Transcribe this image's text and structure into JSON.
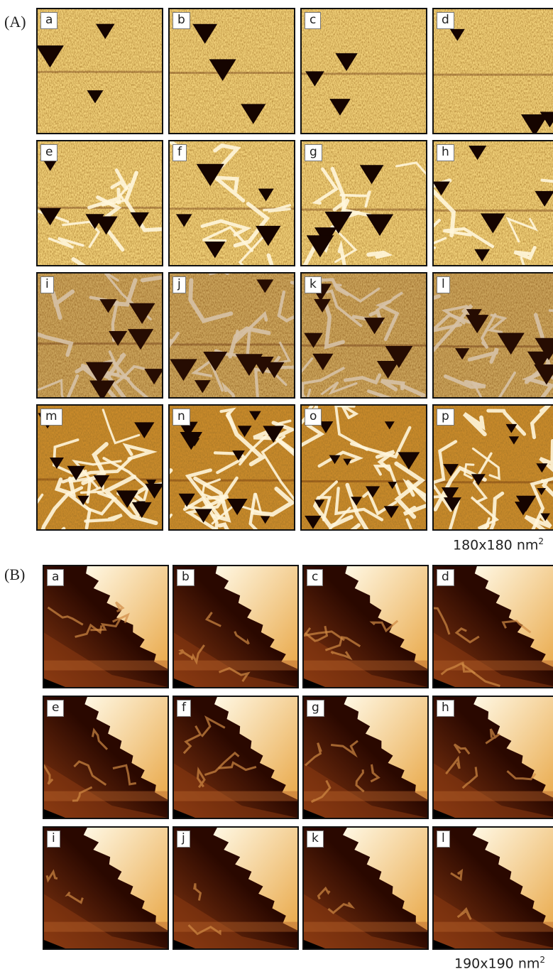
{
  "sectionA": {
    "label": "(A)",
    "panels": [
      "a",
      "b",
      "c",
      "d",
      "e",
      "f",
      "g",
      "h",
      "i",
      "j",
      "k",
      "l",
      "m",
      "n",
      "o",
      "p"
    ],
    "scale_text": "180x180 nm",
    "scale_sup": "2"
  },
  "sectionB": {
    "label": "(B)",
    "panels": [
      "a",
      "b",
      "c",
      "d",
      "e",
      "f",
      "g",
      "h",
      "i",
      "j",
      "k",
      "l"
    ],
    "scale_text": "190x190 nm",
    "scale_sup": "2"
  },
  "colors": {
    "afm_light": "#f2d17a",
    "afm_mid": "#c98a2a",
    "afm_dark": "#5a2306",
    "afm_white": "#fff6dc",
    "stm_dark": "#2a0800",
    "stm_mid": "#8a3a12",
    "stm_light": "#fff8e4"
  }
}
